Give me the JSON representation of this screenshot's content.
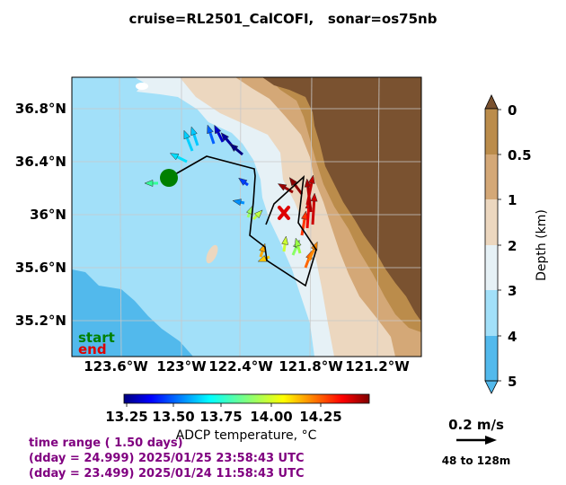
{
  "title": "cruise=RL2501_CalCOFI,   sonar=os75nb",
  "map": {
    "lat_labels": [
      "36.8°N",
      "36.4°N",
      "36°N",
      "35.6°N",
      "35.2°N"
    ],
    "lon_labels": [
      "123.6°W",
      "123°W",
      "122.4°W",
      "121.8°W",
      "121.2°W"
    ],
    "start_label": "start",
    "end_label": "end",
    "start_color": "#008000",
    "end_color": "#dd0000",
    "track_color": "#000000"
  },
  "colorbar": {
    "label": "ADCP temperature, °C",
    "ticks": [
      "13.25",
      "13.50",
      "13.75",
      "14.00",
      "14.25"
    ],
    "colormap": "jet"
  },
  "depth_colorbar": {
    "label": "Depth (km)",
    "ticks": [
      "0",
      "0.5",
      "1",
      "2",
      "3",
      "4",
      "5"
    ],
    "colors": [
      "#bb8c4b",
      "#d4a877",
      "#ecd7bf",
      "#e6f1f6",
      "#a2e0f9",
      "#52b9ec"
    ]
  },
  "scale": {
    "speed_label": "0.2 m/s",
    "depth_range": "48 to 128m"
  },
  "info": {
    "line1": "time range ( 1.50 days)",
    "line2": "(dday = 24.999) 2025/01/25 23:58:43 UTC",
    "line3": "(dday = 23.499) 2025/01/24 11:58:43 UTC"
  }
}
